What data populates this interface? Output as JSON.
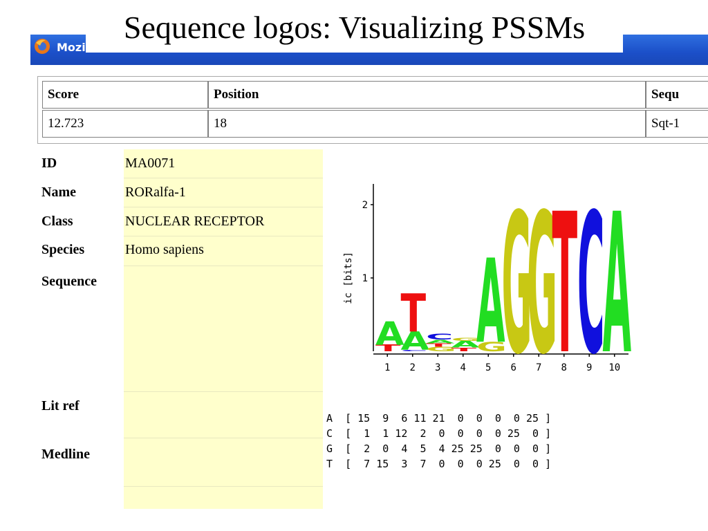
{
  "slide_title": "Sequence logos: Visualizing PSSMs",
  "window": {
    "title": "Mozilla Firefox",
    "icon": "firefox-icon"
  },
  "results_table": {
    "headers": [
      "Score",
      "Position",
      "Sequ"
    ],
    "row": [
      "12.723",
      "18",
      "Sqt-1"
    ]
  },
  "info": {
    "id_label": "ID",
    "id_value": "MA0071",
    "name_label": "Name",
    "name_value": "RORalfa-1",
    "class_label": "Class",
    "class_value": "NUCLEAR RECEPTOR",
    "species_label": "Species",
    "species_value": "Homo sapiens",
    "sequence_label": "Sequence",
    "litref_label": "Lit ref",
    "medline_label": "Medline"
  },
  "logo": {
    "ylabel": "ic [bits]",
    "yticks": [
      "1",
      "2"
    ],
    "xticks": [
      "1",
      "2",
      "3",
      "4",
      "5",
      "6",
      "7",
      "8",
      "9",
      "10"
    ],
    "colors": {
      "A": "#22dd22",
      "C": "#1010dd",
      "G": "#c8c814",
      "T": "#ee1010"
    },
    "columns": [
      [
        [
          "T",
          0.09
        ],
        [
          "A",
          0.32
        ]
      ],
      [
        [
          "C",
          0.02
        ],
        [
          "A",
          0.25
        ],
        [
          "T",
          0.52
        ]
      ],
      [
        [
          "G",
          0.06
        ],
        [
          "T",
          0.05
        ],
        [
          "A",
          0.05
        ],
        [
          "C",
          0.08
        ]
      ],
      [
        [
          "T",
          0.05
        ],
        [
          "A",
          0.09
        ],
        [
          "G",
          0.04
        ]
      ],
      [
        [
          "G",
          0.13
        ],
        [
          "A",
          1.15
        ]
      ],
      [
        [
          "G",
          1.92
        ]
      ],
      [
        [
          "G",
          1.92
        ]
      ],
      [
        [
          "T",
          1.92
        ]
      ],
      [
        [
          "C",
          1.92
        ]
      ],
      [
        [
          "A",
          1.92
        ]
      ]
    ]
  },
  "matrix": {
    "rows": [
      {
        "base": "A",
        "counts": [
          15,
          9,
          6,
          11,
          21,
          0,
          0,
          0,
          0,
          25
        ]
      },
      {
        "base": "C",
        "counts": [
          1,
          1,
          12,
          2,
          0,
          0,
          0,
          0,
          25,
          0
        ]
      },
      {
        "base": "G",
        "counts": [
          2,
          0,
          4,
          5,
          4,
          25,
          25,
          0,
          0,
          0
        ]
      },
      {
        "base": "T",
        "counts": [
          7,
          15,
          3,
          7,
          0,
          0,
          0,
          25,
          0,
          0
        ]
      }
    ]
  }
}
